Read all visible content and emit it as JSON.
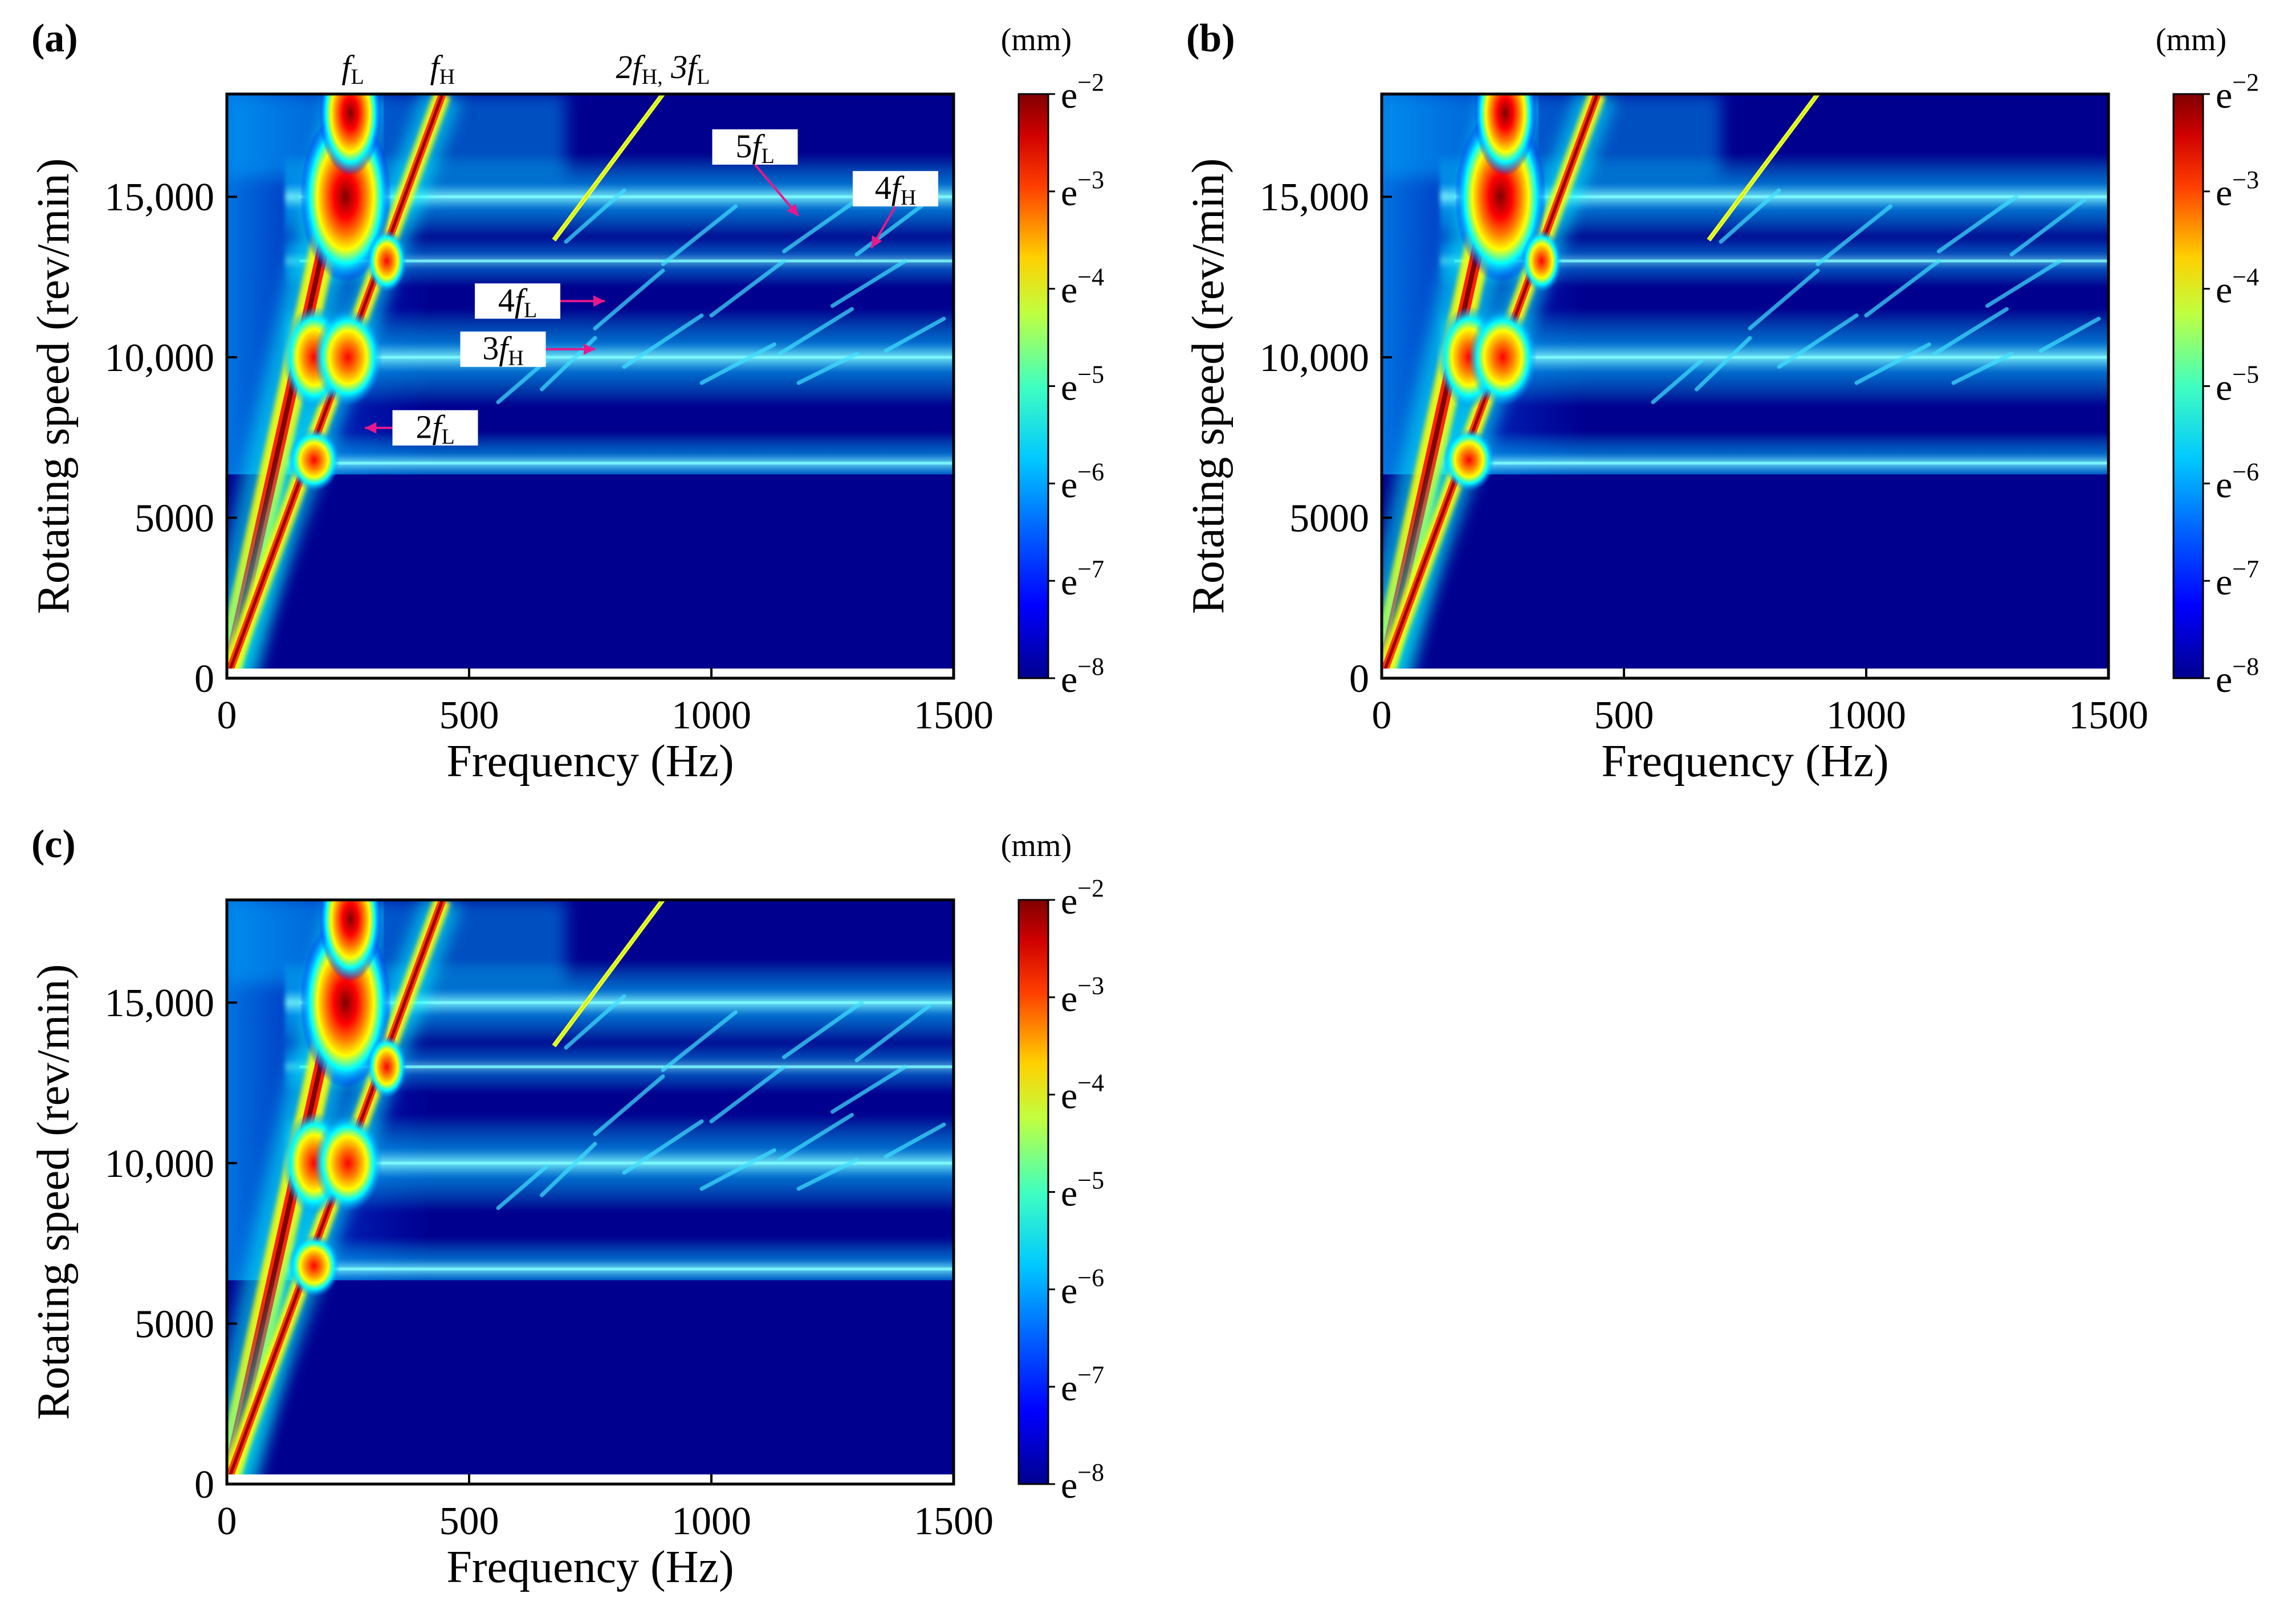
{
  "colors": {
    "colormap": [
      "#00008f",
      "#0000ff",
      "#0080ff",
      "#00ffff",
      "#80ff80",
      "#ffff00",
      "#ff8000",
      "#ff0000",
      "#800000"
    ],
    "annotation_arrow": "#e6198c",
    "frame": "#000000"
  },
  "chart_data": [
    {
      "panel_label": "(a)",
      "type": "heatmap",
      "title": "",
      "xlabel": "Frequency (Hz)",
      "ylabel": "Rotating speed (rev/min)",
      "xlim": [
        0,
        1500
      ],
      "ylim": [
        0,
        18200
      ],
      "x_ticks": [
        {
          "value": 0,
          "label": "0"
        },
        {
          "value": 500,
          "label": "500"
        },
        {
          "value": 1000,
          "label": "1000"
        },
        {
          "value": 1500,
          "label": "1500"
        }
      ],
      "y_ticks": [
        {
          "value": 0,
          "label": "0"
        },
        {
          "value": 5000,
          "label": "5000"
        },
        {
          "value": 10000,
          "label": "10,000"
        },
        {
          "value": 15000,
          "label": "15,000"
        }
      ],
      "colorbar": {
        "unit": "(mm)",
        "ticks": [
          {
            "base": "e",
            "exp": "−2"
          },
          {
            "base": "e",
            "exp": "−3"
          },
          {
            "base": "e",
            "exp": "−4"
          },
          {
            "base": "e",
            "exp": "−5"
          },
          {
            "base": "e",
            "exp": "−6"
          },
          {
            "base": "e",
            "exp": "−7"
          },
          {
            "base": "e",
            "exp": "−8"
          }
        ],
        "range": [
          -8,
          -2
        ]
      },
      "critical_speeds": [
        6700,
        10000,
        15000
      ],
      "line_ridges": [
        {
          "name": "fL",
          "x_at_top": 270
        },
        {
          "name": "fH",
          "x_at_top": 445
        },
        {
          "name": "2fH, 3fL",
          "x_at_top": 900
        }
      ],
      "top_labels": [
        {
          "main": "f",
          "sub": "L",
          "x": 260
        },
        {
          "main": "f",
          "sub": "H",
          "x": 445
        },
        {
          "main": "2f",
          "sub": "H,",
          "tail": " 3f",
          "sub2": "L",
          "x": 900
        }
      ],
      "annotations": [
        {
          "text": "5f",
          "sub": "L",
          "label_x": 1090,
          "label_y": 16550,
          "tip_x": 1180,
          "tip_y": 14400
        },
        {
          "text": "4f",
          "sub": "H",
          "label_x": 1380,
          "label_y": 15250,
          "tip_x": 1330,
          "tip_y": 13400
        },
        {
          "text": "4f",
          "sub": "L",
          "label_x": 600,
          "label_y": 11750,
          "tip_x": 780,
          "tip_y": 11750
        },
        {
          "text": "3f",
          "sub": "H",
          "label_x": 570,
          "label_y": 10250,
          "tip_x": 760,
          "tip_y": 10250
        },
        {
          "text": "2f",
          "sub": "L",
          "label_x": 430,
          "label_y": 7800,
          "tip_x": 285,
          "tip_y": 7800
        }
      ]
    },
    {
      "panel_label": "(b)",
      "type": "heatmap",
      "title": "",
      "xlabel": "Frequency (Hz)",
      "ylabel": "Rotating speed (rev/min)",
      "xlim": [
        0,
        1500
      ],
      "ylim": [
        0,
        18200
      ],
      "x_ticks": [
        {
          "value": 0,
          "label": "0"
        },
        {
          "value": 500,
          "label": "500"
        },
        {
          "value": 1000,
          "label": "1000"
        },
        {
          "value": 1500,
          "label": "1500"
        }
      ],
      "y_ticks": [
        {
          "value": 0,
          "label": "0"
        },
        {
          "value": 5000,
          "label": "5000"
        },
        {
          "value": 10000,
          "label": "10,000"
        },
        {
          "value": 15000,
          "label": "15,000"
        }
      ],
      "colorbar": {
        "unit": "(mm)",
        "ticks": [
          {
            "base": "e",
            "exp": "−2"
          },
          {
            "base": "e",
            "exp": "−3"
          },
          {
            "base": "e",
            "exp": "−4"
          },
          {
            "base": "e",
            "exp": "−5"
          },
          {
            "base": "e",
            "exp": "−6"
          },
          {
            "base": "e",
            "exp": "−7"
          },
          {
            "base": "e",
            "exp": "−8"
          }
        ],
        "range": [
          -8,
          -2
        ]
      },
      "critical_speeds": [
        6700,
        10000,
        15000
      ],
      "line_ridges": [
        {
          "name": "fL",
          "x_at_top": 270
        },
        {
          "name": "fH",
          "x_at_top": 445
        },
        {
          "name": "2fH, 3fL",
          "x_at_top": 900
        }
      ],
      "top_labels": [],
      "annotations": []
    },
    {
      "panel_label": "(c)",
      "type": "heatmap",
      "title": "",
      "xlabel": "Frequency (Hz)",
      "ylabel": "Rotating speed (rev/min)",
      "xlim": [
        0,
        1500
      ],
      "ylim": [
        0,
        18200
      ],
      "x_ticks": [
        {
          "value": 0,
          "label": "0"
        },
        {
          "value": 500,
          "label": "500"
        },
        {
          "value": 1000,
          "label": "1000"
        },
        {
          "value": 1500,
          "label": "1500"
        }
      ],
      "y_ticks": [
        {
          "value": 0,
          "label": "0"
        },
        {
          "value": 5000,
          "label": "5000"
        },
        {
          "value": 10000,
          "label": "10,000"
        },
        {
          "value": 15000,
          "label": "15,000"
        }
      ],
      "colorbar": {
        "unit": "(mm)",
        "ticks": [
          {
            "base": "e",
            "exp": "−2"
          },
          {
            "base": "e",
            "exp": "−3"
          },
          {
            "base": "e",
            "exp": "−4"
          },
          {
            "base": "e",
            "exp": "−5"
          },
          {
            "base": "e",
            "exp": "−6"
          },
          {
            "base": "e",
            "exp": "−7"
          },
          {
            "base": "e",
            "exp": "−8"
          }
        ],
        "range": [
          -8,
          -2
        ]
      },
      "critical_speeds": [
        6700,
        10000,
        15000
      ],
      "line_ridges": [
        {
          "name": "fL",
          "x_at_top": 270
        },
        {
          "name": "fH",
          "x_at_top": 445
        },
        {
          "name": "2fH, 3fL",
          "x_at_top": 900
        }
      ],
      "top_labels": [],
      "annotations": []
    }
  ]
}
